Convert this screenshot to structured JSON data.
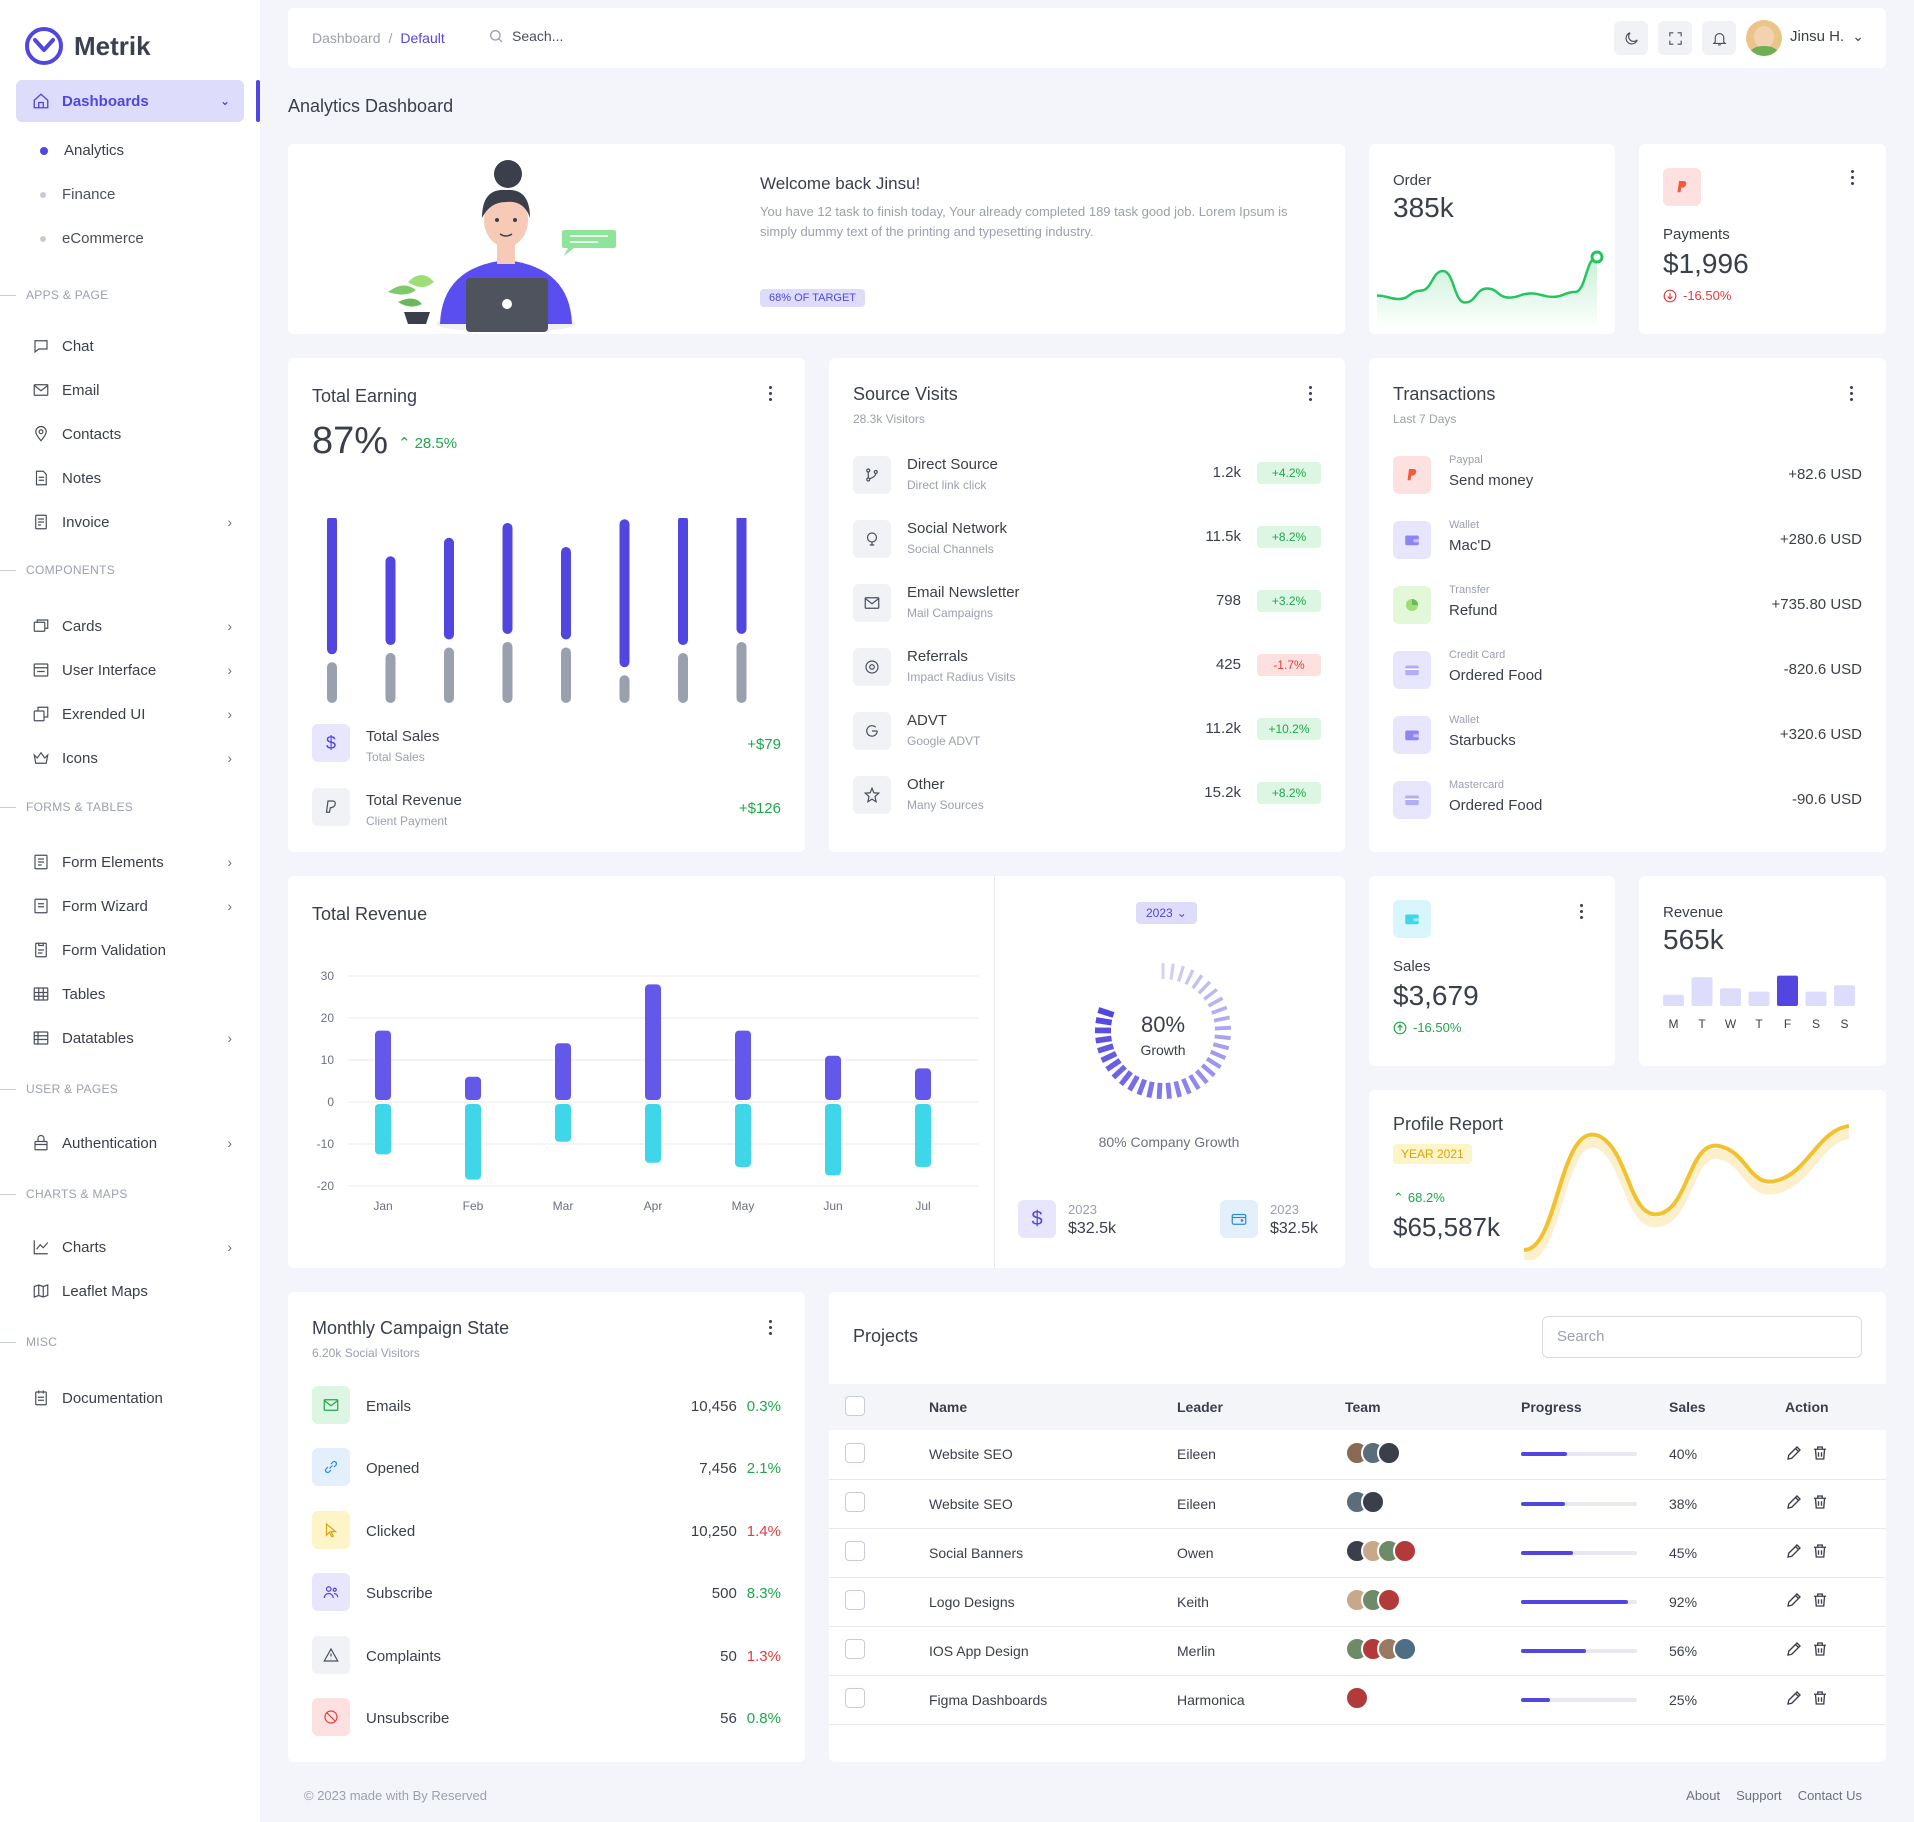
{
  "app": {
    "name": "Metrik"
  },
  "colors": {
    "accent": "#5246e0",
    "green": "#1fa64a",
    "red": "#e53b3b",
    "cyan": "#3fd6ea",
    "yellow": "#f2c12e"
  },
  "sidebar": {
    "active": "Dashboards",
    "subitems": [
      "Analytics",
      "Finance",
      "eCommerce"
    ],
    "sections": [
      {
        "label": "APPS & PAGE",
        "items": [
          {
            "label": "Chat",
            "icon": "chat-icon"
          },
          {
            "label": "Email",
            "icon": "mail-icon"
          },
          {
            "label": "Contacts",
            "icon": "pin-icon"
          },
          {
            "label": "Notes",
            "icon": "note-icon"
          },
          {
            "label": "Invoice",
            "icon": "invoice-icon",
            "chevron": true
          }
        ]
      },
      {
        "label": "COMPONENTS",
        "items": [
          {
            "label": "Cards",
            "icon": "cards-icon",
            "chevron": true
          },
          {
            "label": "User Interface",
            "icon": "ui-icon",
            "chevron": true
          },
          {
            "label": "Exrended UI",
            "icon": "extended-icon",
            "chevron": true
          },
          {
            "label": "Icons",
            "icon": "crown-icon",
            "chevron": true
          }
        ]
      },
      {
        "label": "FORMS & TABLES",
        "items": [
          {
            "label": "Form Elements",
            "icon": "form-icon",
            "chevron": true
          },
          {
            "label": "Form Wizard",
            "icon": "wizard-icon",
            "chevron": true
          },
          {
            "label": "Form Validation",
            "icon": "validation-icon"
          },
          {
            "label": "Tables",
            "icon": "table-icon"
          },
          {
            "label": "Datatables",
            "icon": "datatable-icon",
            "chevron": true
          }
        ]
      },
      {
        "label": "USER & PAGES",
        "items": [
          {
            "label": "Authentication",
            "icon": "lock-icon",
            "chevron": true
          }
        ]
      },
      {
        "label": "CHARTS & MAPS",
        "items": [
          {
            "label": "Charts",
            "icon": "chart-icon",
            "chevron": true
          },
          {
            "label": "Leaflet Maps",
            "icon": "map-icon"
          }
        ]
      },
      {
        "label": "MISC",
        "items": [
          {
            "label": "Documentation",
            "icon": "doc-icon"
          }
        ]
      }
    ]
  },
  "topbar": {
    "breadcrumb_root": "Dashboard",
    "breadcrumb_sep": "/",
    "breadcrumb_current": "Default",
    "search_placeholder": "Seach...",
    "user": "Jinsu H."
  },
  "page_title": "Analytics Dashboard",
  "welcome": {
    "title": "Welcome back Jinsu!",
    "text": "You have 12 task to finish today, Your already completed 189 task good job. Lorem Ipsum is simply dummy text of the printing and typesetting industry.",
    "badge": "68% OF TARGET"
  },
  "order": {
    "label": "Order",
    "value": "385k",
    "trend": [
      0.35,
      0.3,
      0.42,
      0.7,
      0.25,
      0.45,
      0.32,
      0.38,
      0.33,
      0.4,
      0.9
    ]
  },
  "payments": {
    "label": "Payments",
    "value": "$1,996",
    "change": "-16.50%"
  },
  "total_earning": {
    "title": "Total Earning",
    "percent": "87%",
    "change": "28.5%",
    "rows": [
      {
        "title": "Total Sales",
        "sub": "Total Sales",
        "value": "+$79"
      },
      {
        "title": "Total Revenue",
        "sub": "Client Payment",
        "value": "+$126"
      }
    ]
  },
  "source_visits": {
    "title": "Source Visits",
    "sub": "28.3k Visitors",
    "rows": [
      {
        "title": "Direct Source",
        "sub": "Direct link click",
        "value": "1.2k",
        "change": "+4.2%",
        "up": true
      },
      {
        "title": "Social Network",
        "sub": "Social Channels",
        "value": "11.5k",
        "change": "+8.2%",
        "up": true
      },
      {
        "title": "Email Newsletter",
        "sub": "Mail Campaigns",
        "value": "798",
        "change": "+3.2%",
        "up": true
      },
      {
        "title": "Referrals",
        "sub": "Impact Radius Visits",
        "value": "425",
        "change": "-1.7%",
        "up": false
      },
      {
        "title": "ADVT",
        "sub": "Google ADVT",
        "value": "11.2k",
        "change": "+10.2%",
        "up": true
      },
      {
        "title": "Other",
        "sub": "Many Sources",
        "value": "15.2k",
        "change": "+8.2%",
        "up": true
      }
    ]
  },
  "transactions": {
    "title": "Transactions",
    "sub": "Last 7 Days",
    "rows": [
      {
        "source": "Paypal",
        "title": "Send money",
        "amount": "+82.6 USD"
      },
      {
        "source": "Wallet",
        "title": "Mac'D",
        "amount": "+280.6 USD"
      },
      {
        "source": "Transfer",
        "title": "Refund",
        "amount": "+735.80 USD"
      },
      {
        "source": "Credit Card",
        "title": "Ordered Food",
        "amount": "-820.6 USD"
      },
      {
        "source": "Wallet",
        "title": "Starbucks",
        "amount": "+320.6 USD"
      },
      {
        "source": "Mastercard",
        "title": "Ordered Food",
        "amount": "-90.6 USD"
      }
    ]
  },
  "total_revenue": {
    "title": "Total Revenue",
    "year": "2023",
    "growth_value": "80%",
    "growth_label": "Growth",
    "growth_caption": "80% Company Growth",
    "stats": [
      {
        "year": "2023",
        "value": "$32.5k"
      },
      {
        "year": "2023",
        "value": "$32.5k"
      }
    ]
  },
  "sales_card": {
    "label": "Sales",
    "value": "$3,679",
    "change": "-16.50%"
  },
  "revenue_card": {
    "label": "Revenue",
    "value": "565k",
    "days": [
      "M",
      "T",
      "W",
      "T",
      "F",
      "S",
      "S"
    ],
    "values": [
      0.35,
      0.9,
      0.55,
      0.45,
      0.95,
      0.45,
      0.65
    ],
    "highlight": 4
  },
  "profile_report": {
    "title": "Profile Report",
    "badge": "YEAR 2021",
    "change": "68.2%",
    "value": "$65,587k"
  },
  "campaign": {
    "title": "Monthly Campaign State",
    "sub": "6.20k Social Visitors",
    "rows": [
      {
        "label": "Emails",
        "value": "10,456",
        "pct": "0.3%",
        "up": true
      },
      {
        "label": "Opened",
        "value": "7,456",
        "pct": "2.1%",
        "up": true
      },
      {
        "label": "Clicked",
        "value": "10,250",
        "pct": "1.4%",
        "up": false
      },
      {
        "label": "Subscribe",
        "value": "500",
        "pct": "8.3%",
        "up": true
      },
      {
        "label": "Complaints",
        "value": "50",
        "pct": "1.3%",
        "up": false
      },
      {
        "label": "Unsubscribe",
        "value": "56",
        "pct": "0.8%",
        "up": true
      }
    ]
  },
  "projects": {
    "title": "Projects",
    "search_placeholder": "Search",
    "columns": [
      "Name",
      "Leader",
      "Team",
      "Progress",
      "Sales",
      "Action"
    ],
    "rows": [
      {
        "name": "Website SEO",
        "leader": "Eileen",
        "team": 3,
        "progress": 0.4,
        "sales": "40%"
      },
      {
        "name": "Website SEO",
        "leader": "Eileen",
        "team": 2,
        "progress": 0.38,
        "sales": "38%"
      },
      {
        "name": "Social Banners",
        "leader": "Owen",
        "team": 4,
        "progress": 0.45,
        "sales": "45%"
      },
      {
        "name": "Logo Designs",
        "leader": "Keith",
        "team": 3,
        "progress": 0.92,
        "sales": "92%"
      },
      {
        "name": "IOS App Design",
        "leader": "Merlin",
        "team": 4,
        "progress": 0.56,
        "sales": "56%"
      },
      {
        "name": "Figma Dashboards",
        "leader": "Harmonica",
        "team": 1,
        "progress": 0.25,
        "sales": "25%"
      }
    ]
  },
  "footer": {
    "copy": "© 2023 made with By Reserved",
    "links": [
      "About",
      "Support",
      "Contact Us"
    ]
  },
  "chart_data": [
    {
      "type": "bar",
      "title": "Total Earning",
      "categories": [
        "",
        "",
        "",
        "",
        "",
        "",
        "",
        ""
      ],
      "series": [
        {
          "values": [
            0.75,
            0.48,
            0.55,
            0.6,
            0.5,
            0.8,
            0.7,
            0.78
          ]
        },
        {
          "values": [
            0.22,
            0.27,
            0.3,
            0.33,
            0.3,
            0.15,
            0.27,
            0.33
          ]
        }
      ]
    },
    {
      "type": "bar",
      "title": "Total Revenue",
      "categories": [
        "Jan",
        "Feb",
        "Mar",
        "Apr",
        "May",
        "Jun",
        "Jul"
      ],
      "ylim": [
        -20,
        30
      ],
      "yticks": [
        30,
        20,
        10,
        0,
        -10,
        -20
      ],
      "series": [
        {
          "values": [
            17,
            6,
            14,
            28,
            17,
            11,
            8
          ]
        },
        {
          "values": [
            -12,
            -18,
            -9,
            -14,
            -15,
            -17,
            -15
          ]
        }
      ]
    }
  ]
}
